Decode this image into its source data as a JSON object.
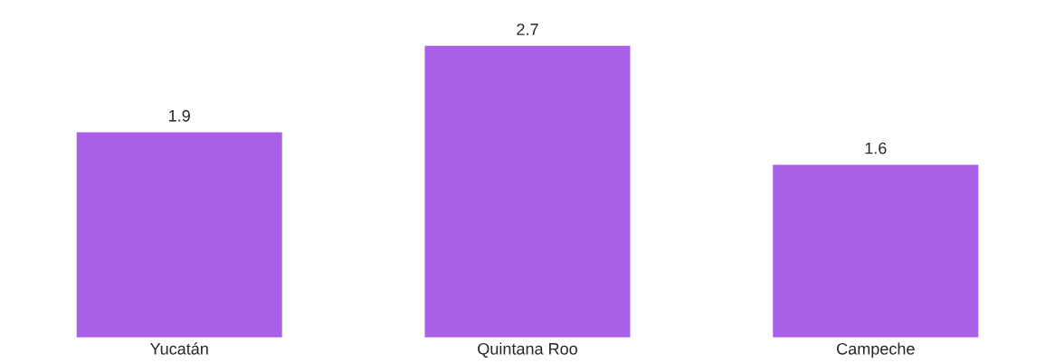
{
  "chart_data": {
    "type": "bar",
    "categories": [
      "Yucatán",
      "Quintana Roo",
      "Campeche"
    ],
    "values": [
      1.9,
      2.7,
      1.6
    ],
    "color": "#a95fe6",
    "data_labels": true,
    "grid": false,
    "legend": false
  }
}
